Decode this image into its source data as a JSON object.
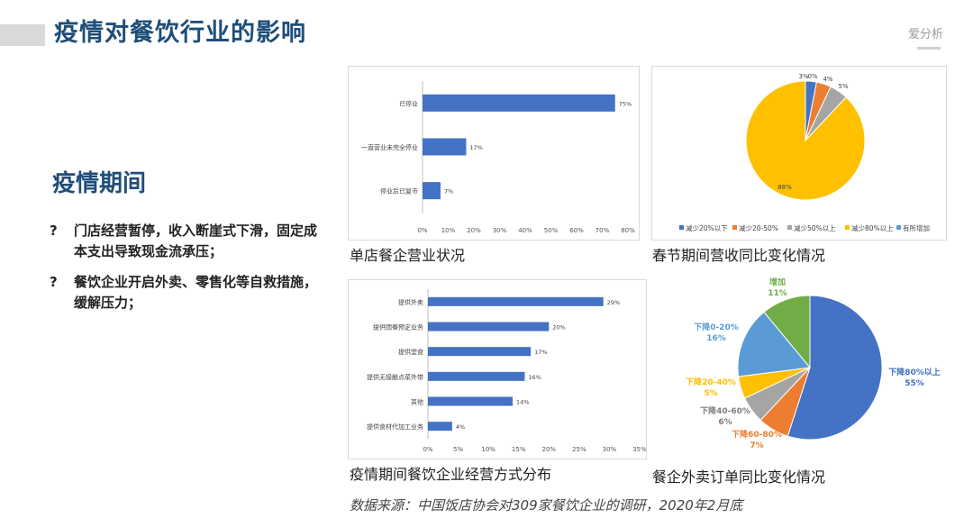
{
  "page": {
    "title": "疫情对餐饮行业的影响",
    "brand": "爱分析",
    "section_title": "疫情期间",
    "bullets": [
      {
        "mark": "?",
        "text": "门店经营暂停，收入断崖式下滑，固定成本支出导致现金流承压；"
      },
      {
        "mark": "?",
        "text": "餐饮企业开启外卖、零售化等自救措施，缓解压力；"
      }
    ],
    "source": "数据来源：中国饭店协会对309家餐饮企业的调研，2020年2月底"
  },
  "colors": {
    "bar": "#4472c4",
    "title": "#1f4e79",
    "blue": "#4472c4",
    "orange": "#ed7d31",
    "gray": "#a5a5a5",
    "yellow": "#ffc000",
    "lightblue": "#5b9bd5",
    "green": "#70ad47"
  },
  "chart_data": [
    {
      "type": "bar",
      "orientation": "horizontal",
      "caption": "单店餐企营业状况",
      "categories": [
        "已停业",
        "一直营业未完全停业",
        "停业后已复市"
      ],
      "values": [
        75,
        17,
        7
      ],
      "value_labels": [
        "75%",
        "17%",
        "7%"
      ],
      "xlim": [
        0,
        80
      ],
      "xticks": [
        "0%",
        "10%",
        "20%",
        "30%",
        "40%",
        "50%",
        "60%",
        "70%",
        "80%"
      ],
      "grid": false
    },
    {
      "type": "pie",
      "caption": "春节期间营收同比变化情况",
      "legend_position": "bottom",
      "slices": [
        {
          "name": "减少20%以下",
          "value": 3,
          "label": "3%",
          "color": "#4472c4"
        },
        {
          "name": "减少20-50%",
          "value": 4,
          "label": "4%",
          "color": "#ed7d31"
        },
        {
          "name": "减少50%以上",
          "value": 5,
          "label": "5%",
          "color": "#a5a5a5"
        },
        {
          "name": "减少80%以上",
          "value": 88,
          "label": "88%",
          "color": "#ffc000"
        },
        {
          "name": "有所增加",
          "value": 0,
          "label": "0%",
          "color": "#5b9bd5"
        }
      ]
    },
    {
      "type": "bar",
      "orientation": "horizontal",
      "caption": "疫情期间餐饮企业经营方式分布",
      "categories": [
        "提供外卖",
        "提供团餐预定业务",
        "提供堂食",
        "提供无接触点菜外带",
        "其他",
        "提供食材代加工业务"
      ],
      "values": [
        29,
        20,
        17,
        16,
        14,
        4
      ],
      "value_labels": [
        "29%",
        "20%",
        "17%",
        "16%",
        "14%",
        "4%"
      ],
      "xlim": [
        0,
        35
      ],
      "xticks": [
        "0%",
        "5%",
        "10%",
        "15%",
        "20%",
        "25%",
        "30%",
        "35%"
      ],
      "grid": false
    },
    {
      "type": "pie",
      "caption": "餐企外卖订单同比变化情况",
      "slices": [
        {
          "name": "下降80%以上",
          "value": 55,
          "label": "55%",
          "color": "#4472c4"
        },
        {
          "name": "下降60-80%",
          "value": 7,
          "label": "7%",
          "color": "#ed7d31"
        },
        {
          "name": "下降40-60%",
          "value": 6,
          "label": "6%",
          "color": "#a5a5a5"
        },
        {
          "name": "下降20-40%",
          "value": 5,
          "label": "5%",
          "color": "#ffc000"
        },
        {
          "name": "下降0-20%",
          "value": 16,
          "label": "16%",
          "color": "#5b9bd5"
        },
        {
          "name": "增加",
          "value": 11,
          "label": "11%",
          "color": "#70ad47"
        }
      ]
    }
  ]
}
